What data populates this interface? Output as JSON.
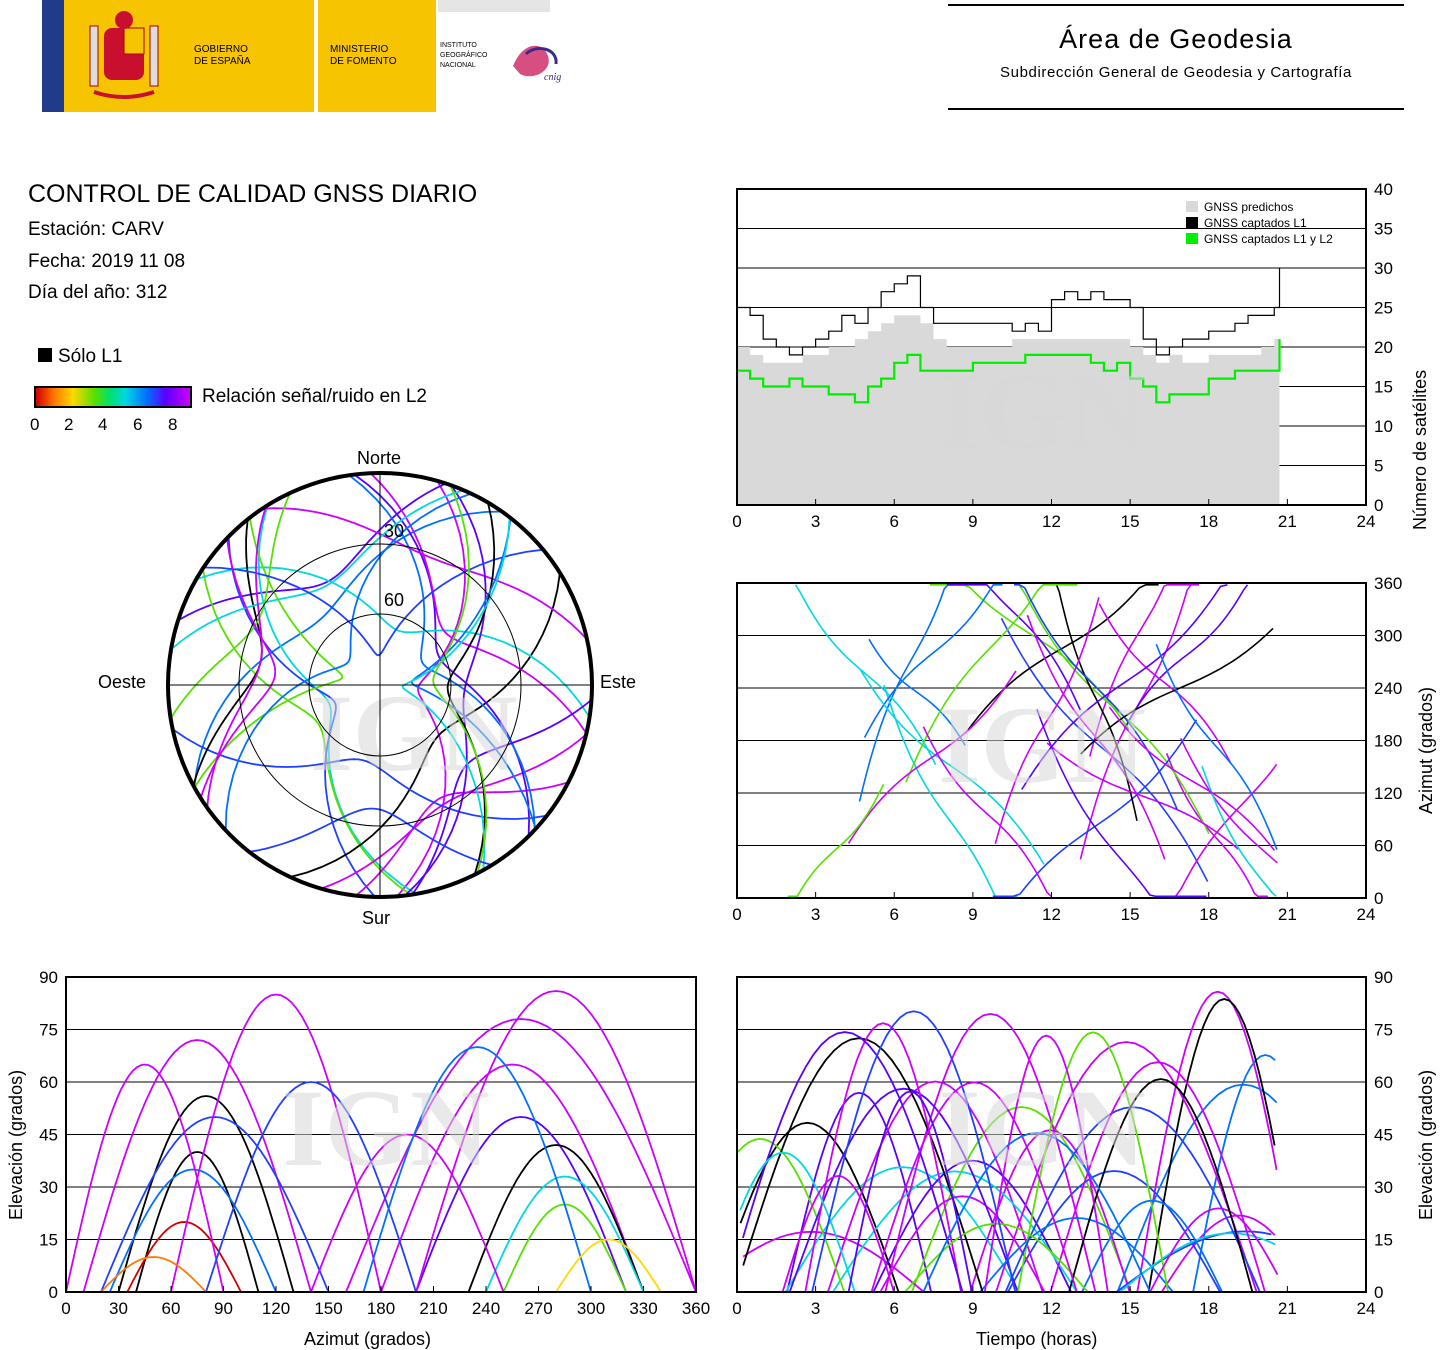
{
  "header": {
    "gov_line1": "GOBIERNO",
    "gov_line2": "DE ESPAÑA",
    "min_line1": "MINISTERIO",
    "min_line2": "DE FOMENTO",
    "ign_line1": "INSTITUTO",
    "ign_line2": "GEOGRÁFICO",
    "ign_line3": "NACIONAL",
    "cnig": "cnig",
    "area_title": "Área de Geodesia",
    "area_subtitle": "Subdirección General de Geodesia y Cartografía"
  },
  "report": {
    "title": "CONTROL DE CALIDAD GNSS DIARIO",
    "station": "Estación: CARV",
    "date": "Fecha: 2019 11 08",
    "doy": "Día del año: 312",
    "solo_l1": "Sólo L1",
    "snr_label": "Relación señal/ruido en L2",
    "snr_ticks": [
      "0",
      "2",
      "4",
      "6",
      "8"
    ],
    "watermark": "IGN"
  },
  "colors": {
    "snr_scale": [
      "#d00000",
      "#ff7a00",
      "#ffd800",
      "#56e000",
      "#00e070",
      "#00d8e0",
      "#0070ff",
      "#5a00ff",
      "#cc00ff"
    ],
    "l1_only": "#000000",
    "predicted": "#d9d9d9",
    "captured_l1": "#000000",
    "captured_l1_l2": "#00ee00"
  },
  "chart_data": [
    {
      "id": "sat-count",
      "type": "line",
      "xlim": [
        0,
        24
      ],
      "ylim": [
        0,
        40
      ],
      "xticks": [
        "0",
        "3",
        "6",
        "9",
        "12",
        "15",
        "18",
        "21",
        "24"
      ],
      "yticks": [
        "0",
        "5",
        "10",
        "15",
        "20",
        "25",
        "30",
        "35",
        "40"
      ],
      "ylabel": "Número de satélites",
      "grid": "horizontal",
      "legend_position": "top-right",
      "x": [
        0,
        0.5,
        1,
        1.5,
        2,
        2.5,
        3,
        3.5,
        4,
        4.5,
        5,
        5.5,
        6,
        6.5,
        7,
        7.5,
        8,
        8.5,
        9,
        9.5,
        10,
        10.5,
        11,
        11.5,
        12,
        12.5,
        13,
        13.5,
        14,
        14.5,
        15,
        15.5,
        16,
        16.5,
        17,
        17.5,
        18,
        18.5,
        19,
        19.5,
        20,
        20.5,
        20.7
      ],
      "series": [
        {
          "name": "GNSS predichos",
          "values": [
            20,
            19,
            18,
            18,
            18,
            19,
            19,
            20,
            20,
            21,
            22,
            23,
            24,
            24,
            23,
            21,
            20,
            20,
            20,
            20,
            20,
            21,
            21,
            21,
            21,
            21,
            21,
            21,
            21,
            21,
            20,
            19,
            18,
            19,
            18,
            18,
            19,
            19,
            19,
            19,
            20,
            21,
            23
          ]
        },
        {
          "name": "GNSS captados L1",
          "values": [
            25,
            24,
            21,
            20,
            19,
            20,
            21,
            22,
            24,
            23,
            25,
            27,
            28,
            29,
            25,
            23,
            23,
            23,
            23,
            23,
            23,
            22,
            23,
            22,
            26,
            27,
            26,
            27,
            26,
            26,
            25,
            21,
            19,
            20,
            21,
            21,
            22,
            22,
            23,
            24,
            24,
            25,
            30
          ]
        },
        {
          "name": "GNSS captados L1 y L2",
          "values": [
            17,
            16,
            15,
            15,
            16,
            15,
            15,
            14,
            14,
            13,
            15,
            16,
            18,
            19,
            17,
            17,
            17,
            17,
            18,
            18,
            18,
            18,
            19,
            19,
            19,
            19,
            19,
            18,
            17,
            18,
            16,
            15,
            13,
            14,
            14,
            14,
            16,
            16,
            17,
            17,
            17,
            17,
            21
          ]
        }
      ]
    },
    {
      "id": "skyplot",
      "type": "scatter",
      "projection": "polar",
      "elevation_rings": [
        "30",
        "60"
      ],
      "directions": {
        "north": "Norte",
        "south": "Sur",
        "east": "Este",
        "west": "Oeste"
      },
      "note_tracks": "satellite tracks colored by L2 SNR"
    },
    {
      "id": "azimuth-time",
      "type": "scatter",
      "xlim": [
        0,
        24
      ],
      "ylim": [
        0,
        360
      ],
      "xticks": [
        "0",
        "3",
        "6",
        "9",
        "12",
        "15",
        "18",
        "21",
        "24"
      ],
      "yticks": [
        "0",
        "60",
        "120",
        "180",
        "240",
        "300",
        "360"
      ],
      "ylabel": "Azimut (grados)",
      "grid": "horizontal"
    },
    {
      "id": "elev-azimuth",
      "type": "scatter",
      "xlim": [
        0,
        360
      ],
      "ylim": [
        0,
        90
      ],
      "xticks": [
        "0",
        "30",
        "60",
        "90",
        "120",
        "150",
        "180",
        "210",
        "240",
        "270",
        "300",
        "330",
        "360"
      ],
      "yticks": [
        "0",
        "15",
        "30",
        "45",
        "60",
        "75",
        "90"
      ],
      "xlabel": "Azimut (grados)",
      "ylabel": "Elevación (grados)",
      "grid": "horizontal"
    },
    {
      "id": "elev-time",
      "type": "scatter",
      "xlim": [
        0,
        24
      ],
      "ylim": [
        0,
        90
      ],
      "xticks": [
        "0",
        "3",
        "6",
        "9",
        "12",
        "15",
        "18",
        "21",
        "24"
      ],
      "yticks": [
        "0",
        "15",
        "30",
        "45",
        "60",
        "75",
        "90"
      ],
      "xlabel": "Tiempo (horas)",
      "ylabel": "Elevación (grados)",
      "grid": "horizontal"
    }
  ]
}
